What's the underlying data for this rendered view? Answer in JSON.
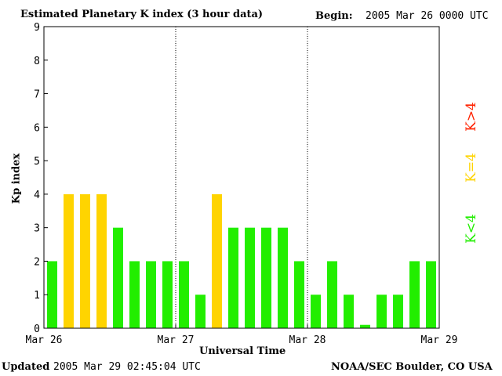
{
  "header": {
    "title": "Estimated Planetary K index (3 hour data)",
    "begin_label": "Begin:",
    "begin_value": "2005 Mar 26 0000 UTC"
  },
  "footer": {
    "updated_label": "Updated",
    "updated_value": "2005 Mar 29 02:45:04 UTC",
    "credit": "NOAA/SEC Boulder, CO USA"
  },
  "legend": {
    "low": "K<4",
    "mid": "K=4",
    "high": "K>4"
  },
  "colors": {
    "low": "#22ee00",
    "mid": "#ffd400",
    "high": "#ff2200"
  },
  "chart_data": {
    "type": "bar",
    "title": "Estimated Planetary K index (3 hour data)",
    "xlabel": "Universal Time",
    "ylabel": "Kp index",
    "ylim": [
      0,
      9
    ],
    "yticks": [
      "0",
      "1",
      "2",
      "3",
      "4",
      "5",
      "6",
      "7",
      "8",
      "9"
    ],
    "day_labels": [
      "Mar 26",
      "Mar 27",
      "Mar 28",
      "Mar 29"
    ],
    "interval_hours": 3,
    "values": [
      2,
      4,
      4,
      4,
      3,
      2,
      2,
      2,
      2,
      1,
      4,
      3,
      3,
      3,
      3,
      2,
      1,
      2,
      1,
      0.1,
      1,
      1,
      2,
      2
    ],
    "color_rule": "green for K<4, yellow for K=4, red for K>4",
    "grid": "dotted vertical lines at day boundaries"
  }
}
